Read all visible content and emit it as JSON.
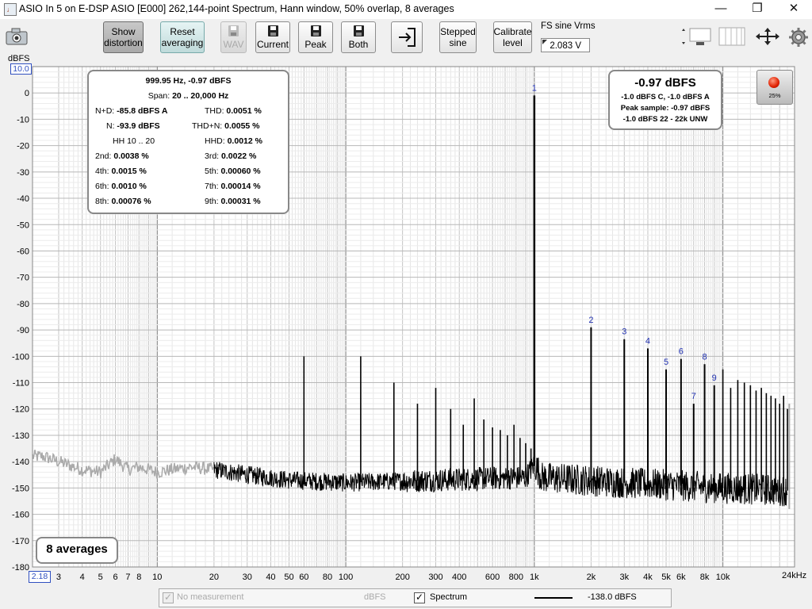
{
  "window": {
    "title": "ASIO In 5 on E-DSP ASIO [E000] 262,144-point Spectrum, Hann window, 50% overlap, 8 averages",
    "minimize": "—",
    "maximize": "❐",
    "close": "✕"
  },
  "toolbar": {
    "show_distortion_line1": "Show",
    "show_distortion_line2": "distortion",
    "reset_line1": "Reset",
    "reset_line2": "averaging",
    "wav": "WAV",
    "current": "Current",
    "peak": "Peak",
    "both": "Both",
    "stepped_line1": "Stepped",
    "stepped_line2": "sine",
    "calibrate_line1": "Calibrate",
    "calibrate_line2": "level",
    "fs_label": "FS sine Vrms",
    "fs_value": "2.083 V"
  },
  "stats": {
    "header": "999.95 Hz, -0.97 dBFS",
    "span_label": "Span:",
    "span_value": "20 .. 20,000 Hz",
    "rows": [
      {
        "l_label": "N+D:",
        "l_value": "-85.8 dBFS A",
        "r_label": "THD:",
        "r_value": "0.0051 %"
      },
      {
        "l_label": "N:",
        "l_value": "-93.9 dBFS",
        "r_label": "THD+N:",
        "r_value": "0.0055 %"
      },
      {
        "l_label": "HH 10 .. 20",
        "l_value": "",
        "r_label": "HHD:",
        "r_value": "0.0012 %"
      },
      {
        "l_label": "2nd:",
        "l_value": "0.0038 %",
        "r_label": "3rd:",
        "r_value": "0.0022 %"
      },
      {
        "l_label": "4th:",
        "l_value": "0.0015 %",
        "r_label": "5th:",
        "r_value": "0.00060 %"
      },
      {
        "l_label": "6th:",
        "l_value": "0.0010 %",
        "r_label": "7th:",
        "r_value": "0.00014 %"
      },
      {
        "l_label": "8th:",
        "l_value": "0.00076 %",
        "r_label": "9th:",
        "r_value": "0.00031 %"
      }
    ]
  },
  "peak_panel": {
    "main": "-0.97 dBFS",
    "line1": "-1.0 dBFS C, -1.0 dBFS A",
    "line2": "Peak sample: -0.97 dBFS",
    "line3": "-1.0 dBFS 22 - 22k UNW"
  },
  "record": {
    "percent": "25%"
  },
  "averages_label": "8 averages",
  "legend": {
    "no_measurement": "No measurement",
    "dbfs": "dBFS",
    "spectrum": "Spectrum",
    "spectrum_level": "-138.0 dBFS"
  },
  "chart_data": {
    "type": "line",
    "title": "",
    "ylabel": "dBFS",
    "xlabel": "",
    "x_scale": "log",
    "xlim": [
      2.18,
      24000
    ],
    "ylim": [
      -180,
      10
    ],
    "x_min_label": "2.18",
    "y_max_label": "10.0",
    "x_ticks": [
      {
        "v": 3,
        "t": "3"
      },
      {
        "v": 4,
        "t": "4"
      },
      {
        "v": 5,
        "t": "5"
      },
      {
        "v": 6,
        "t": "6"
      },
      {
        "v": 7,
        "t": "7"
      },
      {
        "v": 8,
        "t": "8"
      },
      {
        "v": 10,
        "t": "10"
      },
      {
        "v": 20,
        "t": "20"
      },
      {
        "v": 30,
        "t": "30"
      },
      {
        "v": 40,
        "t": "40"
      },
      {
        "v": 50,
        "t": "50"
      },
      {
        "v": 60,
        "t": "60"
      },
      {
        "v": 80,
        "t": "80"
      },
      {
        "v": 100,
        "t": "100"
      },
      {
        "v": 200,
        "t": "200"
      },
      {
        "v": 300,
        "t": "300"
      },
      {
        "v": 400,
        "t": "400"
      },
      {
        "v": 600,
        "t": "600"
      },
      {
        "v": 800,
        "t": "800"
      },
      {
        "v": 1000,
        "t": "1k"
      },
      {
        "v": 2000,
        "t": "2k"
      },
      {
        "v": 3000,
        "t": "3k"
      },
      {
        "v": 4000,
        "t": "4k"
      },
      {
        "v": 5000,
        "t": "5k"
      },
      {
        "v": 6000,
        "t": "6k"
      },
      {
        "v": 8000,
        "t": "8k"
      },
      {
        "v": 10000,
        "t": "10k"
      }
    ],
    "x_end_label": "24kHz",
    "y_ticks": [
      0,
      -10,
      -20,
      -30,
      -40,
      -50,
      -60,
      -70,
      -80,
      -90,
      -100,
      -110,
      -120,
      -130,
      -140,
      -150,
      -160,
      -170,
      -180
    ],
    "noise_floor": [
      [
        2.18,
        -138
      ],
      [
        2.5,
        -138
      ],
      [
        3,
        -140
      ],
      [
        4,
        -143
      ],
      [
        5,
        -144
      ],
      [
        6,
        -139
      ],
      [
        7,
        -143
      ],
      [
        8,
        -142
      ],
      [
        10,
        -144
      ],
      [
        12,
        -143
      ],
      [
        15,
        -142
      ],
      [
        20,
        -143
      ],
      [
        30,
        -145
      ],
      [
        50,
        -147
      ],
      [
        100,
        -148
      ],
      [
        300,
        -147
      ],
      [
        900,
        -146
      ],
      [
        1000,
        -141
      ],
      [
        1100,
        -146
      ],
      [
        3000,
        -148
      ],
      [
        10000,
        -150
      ],
      [
        22000,
        -151
      ]
    ],
    "spurs": [
      [
        60,
        -100
      ],
      [
        120,
        -100
      ],
      [
        180,
        -110
      ],
      [
        240,
        -118
      ],
      [
        300,
        -112
      ],
      [
        360,
        -120
      ],
      [
        420,
        -126
      ],
      [
        480,
        -116
      ],
      [
        540,
        -124
      ],
      [
        600,
        -127
      ],
      [
        660,
        -128
      ],
      [
        720,
        -130
      ],
      [
        780,
        -126
      ],
      [
        840,
        -131
      ],
      [
        900,
        -133
      ],
      [
        960,
        -135
      ]
    ],
    "harmonics": [
      {
        "label": "1",
        "f": 1000,
        "db": -0.97
      },
      {
        "label": "2",
        "f": 2000,
        "db": -89
      },
      {
        "label": "3",
        "f": 3000,
        "db": -93.5
      },
      {
        "label": "4",
        "f": 4000,
        "db": -97
      },
      {
        "label": "5",
        "f": 5000,
        "db": -105
      },
      {
        "label": "6",
        "f": 6000,
        "db": -101
      },
      {
        "label": "7",
        "f": 7000,
        "db": -118
      },
      {
        "label": "8",
        "f": 8000,
        "db": -103
      },
      {
        "label": "9",
        "f": 9000,
        "db": -111
      }
    ],
    "upper_spurs": [
      [
        10000,
        -105
      ],
      [
        11000,
        -112
      ],
      [
        12000,
        -109
      ],
      [
        13000,
        -110
      ],
      [
        14000,
        -111
      ],
      [
        15000,
        -113
      ],
      [
        16000,
        -112
      ],
      [
        17000,
        -114
      ],
      [
        18000,
        -115
      ],
      [
        19000,
        -116
      ],
      [
        20000,
        -118
      ],
      [
        21000,
        -115
      ],
      [
        22000,
        -120
      ]
    ]
  }
}
